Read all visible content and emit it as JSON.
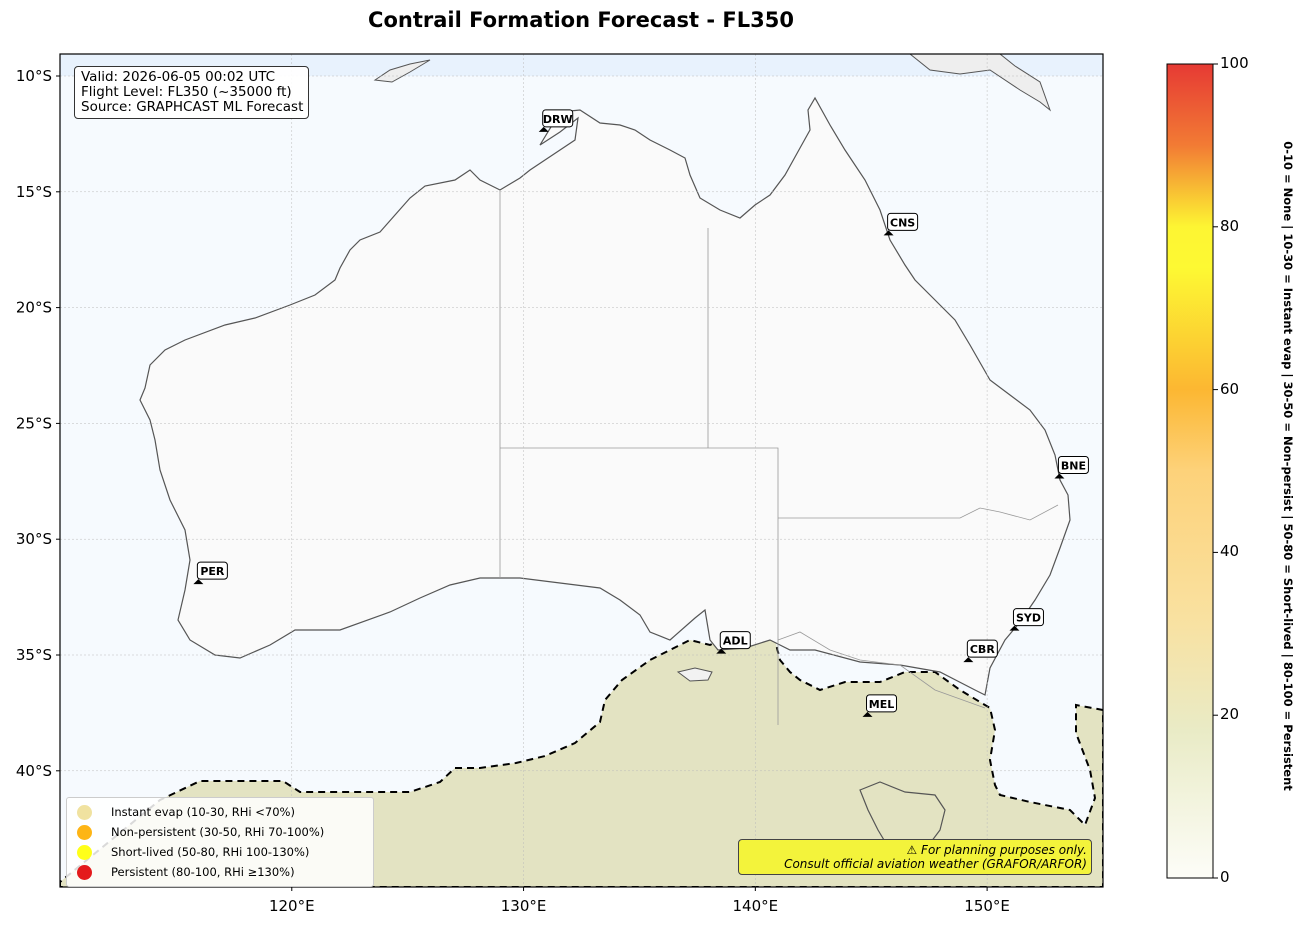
{
  "map": {
    "title": "Contrail Formation Forecast - FL350",
    "info": {
      "valid": "Valid: 2026-06-05 00:02 UTC",
      "flight_level": "Flight Level: FL350 (~35000 ft)",
      "source": "Source: GRAPHCAST ML Forecast"
    },
    "extent": {
      "lon": [
        110,
        155
      ],
      "lat": [
        -10,
        -45
      ]
    },
    "lat_ticks": [
      {
        "value": -10,
        "label": "10°S"
      },
      {
        "value": -15,
        "label": "15°S"
      },
      {
        "value": -20,
        "label": "20°S"
      },
      {
        "value": -25,
        "label": "25°S"
      },
      {
        "value": -30,
        "label": "30°S"
      },
      {
        "value": -35,
        "label": "35°S"
      },
      {
        "value": -40,
        "label": "40°S"
      }
    ],
    "lon_ticks": [
      {
        "value": 120,
        "label": "120°E"
      },
      {
        "value": 130,
        "label": "130°E"
      },
      {
        "value": 140,
        "label": "140°E"
      },
      {
        "value": 150,
        "label": "150°E"
      }
    ],
    "airports": [
      {
        "code": "DRW",
        "lon": 130.87,
        "lat": -12.41
      },
      {
        "code": "CNS",
        "lon": 145.75,
        "lat": -16.88
      },
      {
        "code": "BNE",
        "lon": 153.12,
        "lat": -27.38
      },
      {
        "code": "PER",
        "lon": 115.97,
        "lat": -31.94
      },
      {
        "code": "ADL",
        "lon": 138.53,
        "lat": -34.94
      },
      {
        "code": "SYD",
        "lon": 151.18,
        "lat": -33.95
      },
      {
        "code": "CBR",
        "lon": 149.19,
        "lat": -35.31
      },
      {
        "code": "MEL",
        "lon": 144.84,
        "lat": -37.67
      }
    ],
    "contour_threshold": 20,
    "legend": [
      {
        "label": "Instant evap (10-30, RHi <70%)",
        "color": "#f0e2a0"
      },
      {
        "label": "Non-persistent (30-50, RHi 70-100%)",
        "color": "#fdb515"
      },
      {
        "label": "Short-lived (50-80, RHi 100-130%)",
        "color": "#ffff19"
      },
      {
        "label": "Persistent (80-100, RHi ≥130%)",
        "color": "#e41a1c"
      }
    ],
    "warning": {
      "line1": "⚠ For planning purposes only.",
      "line2": "Consult official aviation weather (GRAFOR/ARFOR)"
    },
    "colorbar": {
      "range": [
        0,
        100
      ],
      "ticks": [
        {
          "value": 100,
          "label": "100"
        },
        {
          "value": 80,
          "label": "80"
        },
        {
          "value": 60,
          "label": "60"
        },
        {
          "value": 40,
          "label": "40"
        },
        {
          "value": 20,
          "label": "20"
        },
        {
          "value": 0,
          "label": "0"
        }
      ],
      "side_label": "0-10 = None  |  10-30 = Instant evap  |  30-50 = Non-persist  |  50-80 = Short-lived  |  80-100 = Persistent",
      "colors": [
        "#fdfdf8",
        "#e9ebc6",
        "#f9e1a0",
        "#fdc553",
        "#fcb732",
        "#fdf933",
        "#f27b34",
        "#e63a34"
      ]
    }
  }
}
